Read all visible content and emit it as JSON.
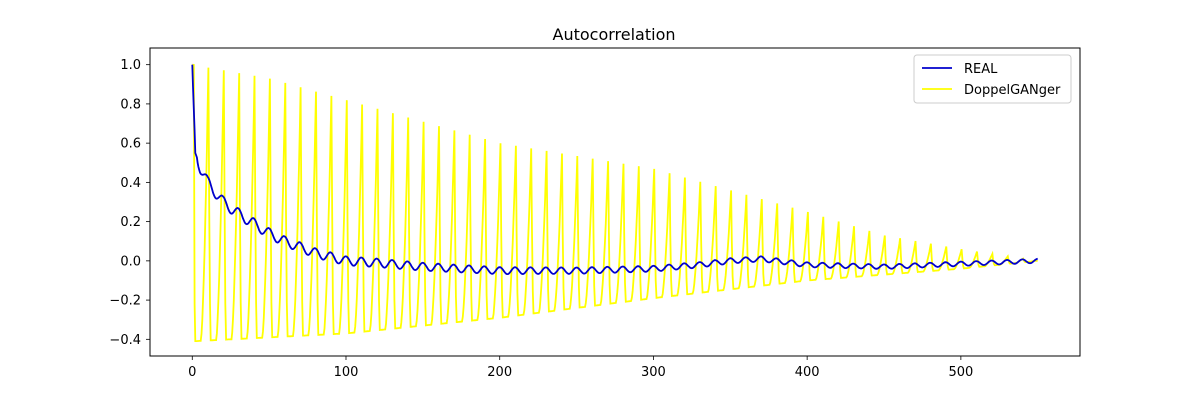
{
  "chart_data": {
    "type": "line",
    "title": "Autocorrelation",
    "xlabel": "",
    "ylabel": "",
    "xlim": [
      -27.5,
      577.5
    ],
    "ylim": [
      -0.485,
      1.085
    ],
    "x_ticks": [
      0,
      100,
      200,
      300,
      400,
      500
    ],
    "y_ticks": [
      -0.4,
      -0.2,
      0.0,
      0.2,
      0.4,
      0.6,
      0.8,
      1.0
    ],
    "x_tick_labels": [
      "0",
      "100",
      "200",
      "300",
      "400",
      "500"
    ],
    "y_tick_labels": [
      "−0.4",
      "−0.2",
      "0.0",
      "0.2",
      "0.4",
      "0.6",
      "0.8",
      "1.0"
    ],
    "grid": false,
    "legend_position": "top-right",
    "series": [
      {
        "name": "DoppelGANger",
        "color": "#ffff00",
        "peaks": [
          {
            "x": 0,
            "y": 1.0
          },
          {
            "x": 50,
            "y": 0.93
          },
          {
            "x": 100,
            "y": 0.82
          },
          {
            "x": 200,
            "y": 0.6
          },
          {
            "x": 300,
            "y": 0.47
          },
          {
            "x": 400,
            "y": 0.25
          },
          {
            "x": 450,
            "y": 0.13
          },
          {
            "x": 500,
            "y": 0.06
          },
          {
            "x": 550,
            "y": 0.0
          }
        ],
        "troughs": [
          {
            "x": 0,
            "y": -0.41
          },
          {
            "x": 100,
            "y": -0.37
          },
          {
            "x": 200,
            "y": -0.29
          },
          {
            "x": 300,
            "y": -0.19
          },
          {
            "x": 400,
            "y": -0.1
          },
          {
            "x": 500,
            "y": -0.04
          },
          {
            "x": 550,
            "y": 0.0
          }
        ]
      },
      {
        "name": "REAL",
        "color": "#0000cc",
        "values": [
          {
            "x": 0,
            "y": 1.0
          },
          {
            "x": 2,
            "y": 0.55
          },
          {
            "x": 5,
            "y": 0.48
          },
          {
            "x": 10,
            "y": 0.4
          },
          {
            "x": 15,
            "y": 0.35
          },
          {
            "x": 20,
            "y": 0.3
          },
          {
            "x": 30,
            "y": 0.24
          },
          {
            "x": 40,
            "y": 0.19
          },
          {
            "x": 50,
            "y": 0.14
          },
          {
            "x": 60,
            "y": 0.1
          },
          {
            "x": 70,
            "y": 0.07
          },
          {
            "x": 80,
            "y": 0.04
          },
          {
            "x": 90,
            "y": 0.02
          },
          {
            "x": 100,
            "y": 0.0
          },
          {
            "x": 120,
            "y": -0.01
          },
          {
            "x": 150,
            "y": -0.03
          },
          {
            "x": 200,
            "y": -0.05
          },
          {
            "x": 250,
            "y": -0.05
          },
          {
            "x": 300,
            "y": -0.04
          },
          {
            "x": 330,
            "y": -0.02
          },
          {
            "x": 350,
            "y": 0.0
          },
          {
            "x": 370,
            "y": 0.01
          },
          {
            "x": 400,
            "y": -0.02
          },
          {
            "x": 450,
            "y": -0.03
          },
          {
            "x": 500,
            "y": -0.015
          },
          {
            "x": 550,
            "y": 0.0
          }
        ]
      }
    ]
  }
}
